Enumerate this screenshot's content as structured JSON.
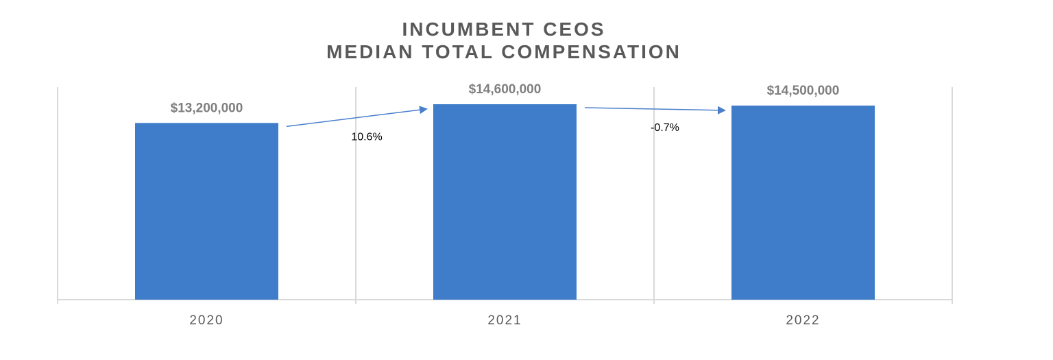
{
  "chart_data": {
    "type": "bar",
    "title_lines": [
      "INCUMBENT CEOS",
      "MEDIAN TOTAL COMPENSATION"
    ],
    "categories": [
      "2020",
      "2021",
      "2022"
    ],
    "values": [
      13200000,
      14600000,
      14500000
    ],
    "value_labels": [
      "$13,200,000",
      "$14,600,000",
      "$14,500,000"
    ],
    "changes": [
      "10.6%",
      "-0.7%"
    ],
    "ylim": [
      0,
      16000000
    ],
    "grid": "vertical",
    "legend": "none",
    "colors": {
      "bar": "#3f7dca",
      "arrow": "#4a7fcb",
      "grid": "#d9d9d9",
      "axis": "#d9d9d9"
    }
  }
}
